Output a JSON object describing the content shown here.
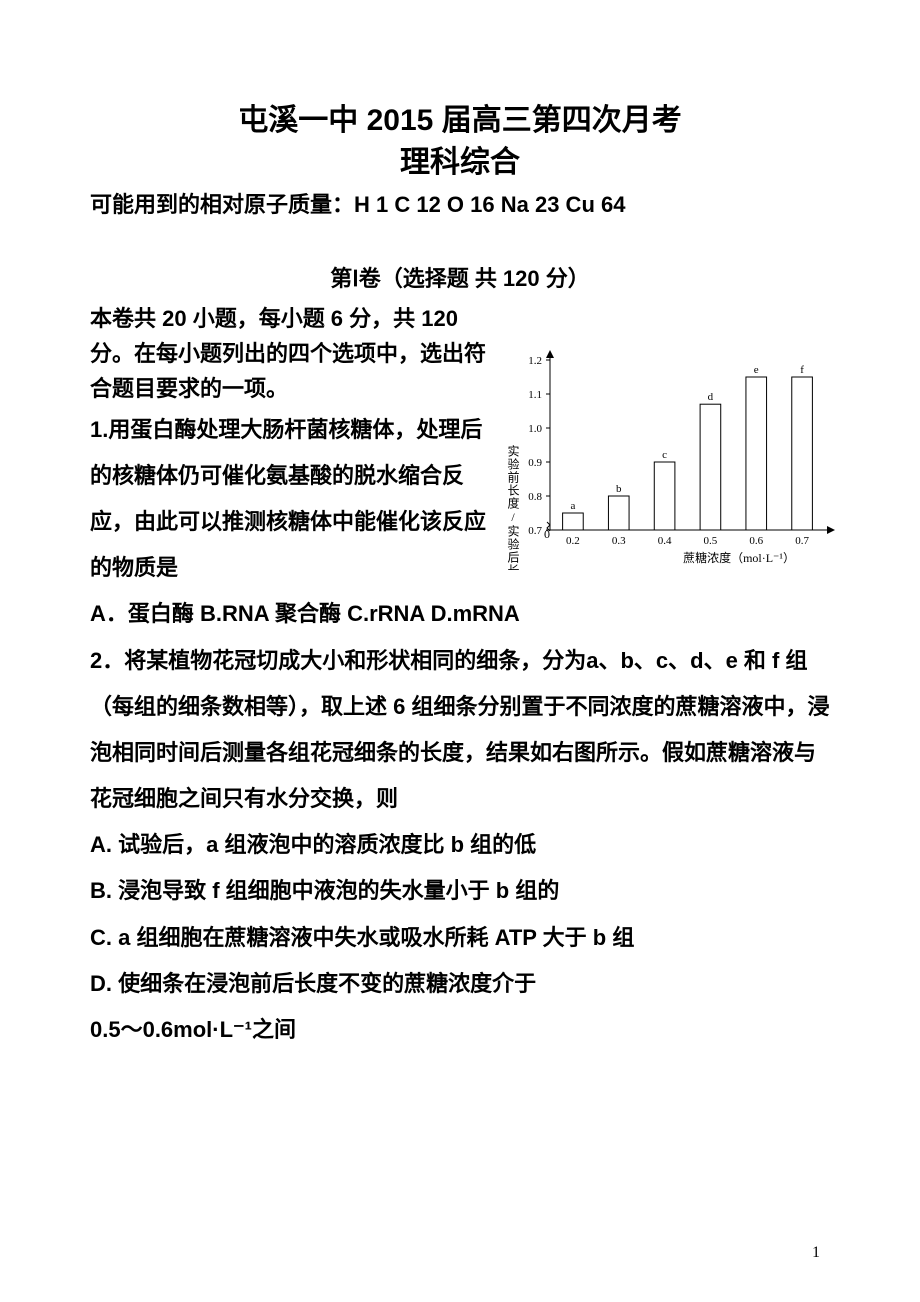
{
  "title_main": "屯溪一中 2015 届高三第四次月考",
  "title_sub": "理科综合",
  "atomic_mass": "可能用到的相对原子质量：H 1   C 12   O 16   Na 23   Cu 64",
  "section_header": "第Ⅰ卷（选择题  共 120 分）",
  "instructions": "本卷共 20 小题，每小题 6 分，共 120 分。在每小题列出的四个选项中，选出符合题目要求的一项。",
  "q1": {
    "stem": "1.用蛋白酶处理大肠杆菌核糖体，处理后的核糖体仍可催化氨基酸的脱水缩合反应，由此可以推测核糖体中能催化该反应的物质是",
    "options": "A．蛋白酶    B.RNA 聚合酶   C.rRNA    D.mRNA"
  },
  "q2": {
    "stem": "2．将某植物花冠切成大小和形状相同的细条，分为a、b、c、d、e 和 f 组（每组的细条数相等），取上述 6 组细条分别置于不同浓度的蔗糖溶液中，浸泡相同时间后测量各组花冠细条的长度，结果如右图所示。假如蔗糖溶液与花冠细胞之间只有水分交换，则",
    "optA": "A.  试验后，a 组液泡中的溶质浓度比 b 组的低",
    "optB": "B.  浸泡导致 f 组细胞中液泡的失水量小于 b 组的",
    "optC": "C.  a 组细胞在蔗糖溶液中失水或吸水所耗 ATP 大于 b 组",
    "optD_pre": "D.               使细条在浸泡前后长度不变的蔗糖浓度介于",
    "optD_post": "0.5～0.6mol·L⁻¹之间"
  },
  "chart": {
    "type": "bar",
    "ylabel": "实验前长度/实验后长度",
    "xlabel": "蔗糖浓度（mol·L⁻¹）",
    "ylim": [
      0.7,
      1.2
    ],
    "yticks": [
      0.7,
      0.8,
      0.9,
      1.0,
      1.1,
      1.2
    ],
    "xvalues": [
      "0.2",
      "0.3",
      "0.4",
      "0.5",
      "0.6",
      "0.7"
    ],
    "bars": [
      {
        "label": "a",
        "value": 0.75
      },
      {
        "label": "b",
        "value": 0.8
      },
      {
        "label": "c",
        "value": 0.9
      },
      {
        "label": "d",
        "value": 1.07
      },
      {
        "label": "e",
        "value": 1.15
      },
      {
        "label": "f",
        "value": 1.15
      }
    ],
    "bar_fill": "#ffffff",
    "bar_stroke": "#000000",
    "axis_color": "#000000",
    "label_fontsize": 12,
    "tick_fontsize": 11
  },
  "page_number": "1"
}
